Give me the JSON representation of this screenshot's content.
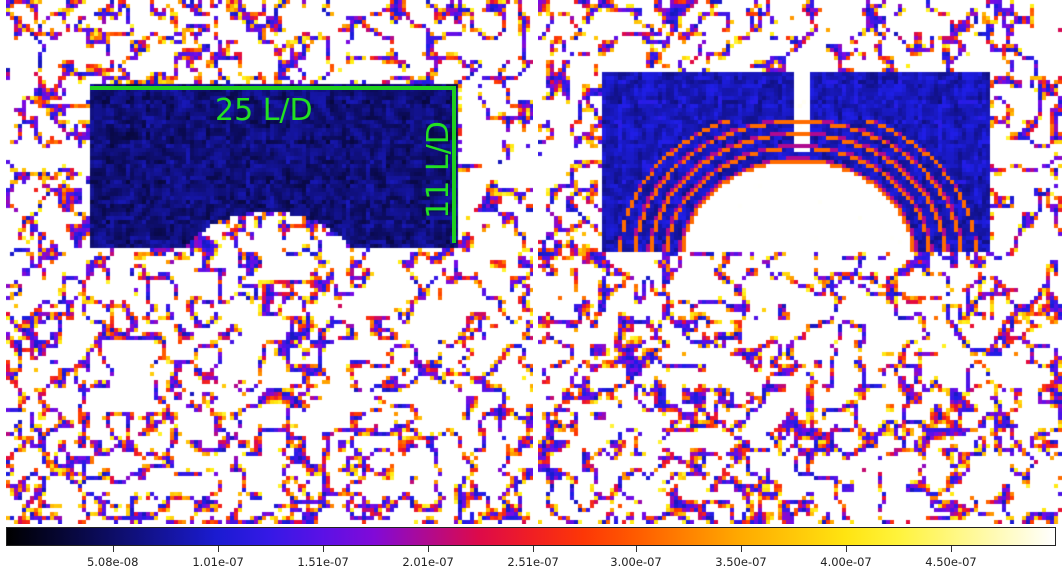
{
  "annotations": {
    "width_label": "25 L/D",
    "height_label": "11 L/D",
    "box_color": "#1fd01f"
  },
  "colorbar": {
    "colormap": "gnuplot2-like (black-blue-red-yellow-white)",
    "ticks": [
      {
        "label": "5.08e-08",
        "value": 5.08e-08
      },
      {
        "label": "1.01e-07",
        "value": 1.01e-07
      },
      {
        "label": "1.51e-07",
        "value": 1.51e-07
      },
      {
        "label": "2.01e-07",
        "value": 2.01e-07
      },
      {
        "label": "2.51e-07",
        "value": 2.51e-07
      },
      {
        "label": "3.00e-07",
        "value": 3e-07
      },
      {
        "label": "3.50e-07",
        "value": 3.5e-07
      },
      {
        "label": "4.00e-07",
        "value": 4e-07
      },
      {
        "label": "4.50e-07",
        "value": 4.5e-07
      }
    ],
    "range": [
      0,
      5e-07
    ]
  }
}
